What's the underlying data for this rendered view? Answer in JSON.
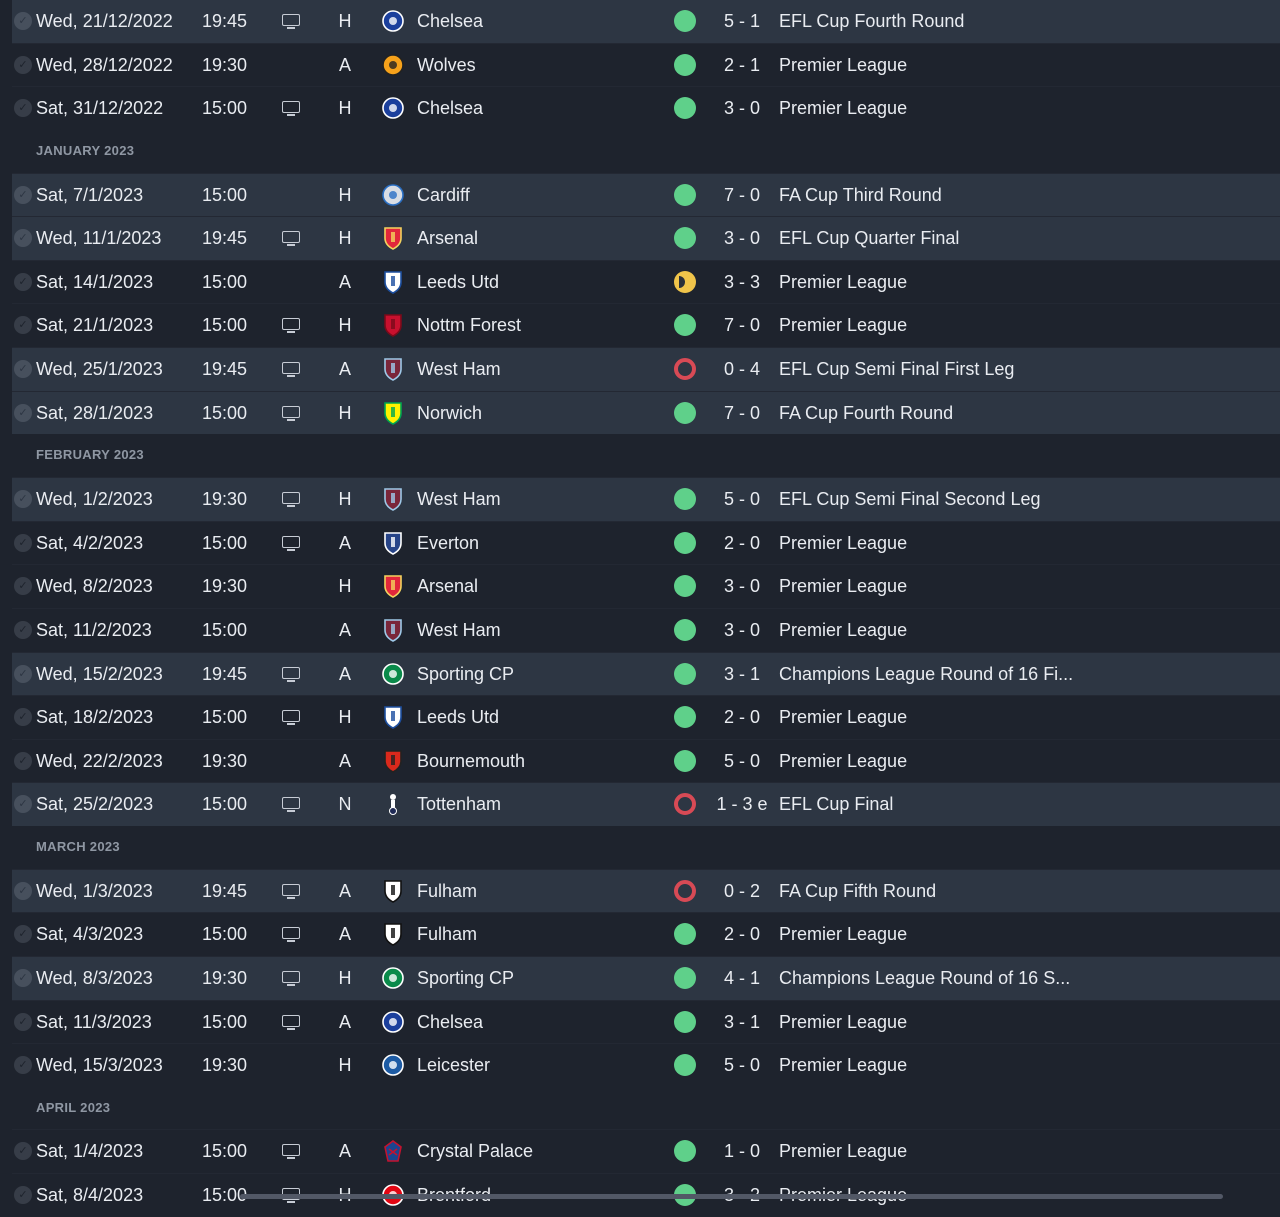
{
  "colors": {
    "win": "#5fd08a",
    "loss": "#d84a55",
    "draw": "#f0c44a",
    "row_highlight": "#2d3643",
    "background": "#1e232d"
  },
  "fixtures": [
    {
      "type": "match",
      "hl": true,
      "date": "Wed, 21/12/2022",
      "time": "19:45",
      "tv": true,
      "venue": "H",
      "team": "Chelsea",
      "crest": "chelsea-crest-icon",
      "result": "w",
      "score": "5 - 1",
      "comp": "EFL Cup Fourth Round"
    },
    {
      "type": "match",
      "hl": false,
      "date": "Wed, 28/12/2022",
      "time": "19:30",
      "tv": false,
      "venue": "A",
      "team": "Wolves",
      "crest": "wolves-crest-icon",
      "result": "w",
      "score": "2 - 1",
      "comp": "Premier League"
    },
    {
      "type": "match",
      "hl": false,
      "date": "Sat, 31/12/2022",
      "time": "15:00",
      "tv": true,
      "venue": "H",
      "team": "Chelsea",
      "crest": "chelsea-crest-icon",
      "result": "w",
      "score": "3 - 0",
      "comp": "Premier League"
    },
    {
      "type": "month",
      "label": "JANUARY 2023"
    },
    {
      "type": "match",
      "hl": true,
      "date": "Sat, 7/1/2023",
      "time": "15:00",
      "tv": false,
      "venue": "H",
      "team": "Cardiff",
      "crest": "cardiff-crest-icon",
      "result": "w",
      "score": "7 - 0",
      "comp": "FA Cup Third Round"
    },
    {
      "type": "match",
      "hl": true,
      "date": "Wed, 11/1/2023",
      "time": "19:45",
      "tv": true,
      "venue": "H",
      "team": "Arsenal",
      "crest": "arsenal-crest-icon",
      "result": "w",
      "score": "3 - 0",
      "comp": "EFL Cup Quarter Final"
    },
    {
      "type": "match",
      "hl": false,
      "date": "Sat, 14/1/2023",
      "time": "15:00",
      "tv": false,
      "venue": "A",
      "team": "Leeds Utd",
      "crest": "leeds-crest-icon",
      "result": "d",
      "score": "3 - 3",
      "comp": "Premier League"
    },
    {
      "type": "match",
      "hl": false,
      "date": "Sat, 21/1/2023",
      "time": "15:00",
      "tv": true,
      "venue": "H",
      "team": "Nottm Forest",
      "crest": "forest-crest-icon",
      "result": "w",
      "score": "7 - 0",
      "comp": "Premier League"
    },
    {
      "type": "match",
      "hl": true,
      "date": "Wed, 25/1/2023",
      "time": "19:45",
      "tv": true,
      "venue": "A",
      "team": "West Ham",
      "crest": "westham-crest-icon",
      "result": "l",
      "score": "0 - 4",
      "comp": "EFL Cup Semi Final First Leg"
    },
    {
      "type": "match",
      "hl": true,
      "date": "Sat, 28/1/2023",
      "time": "15:00",
      "tv": true,
      "venue": "H",
      "team": "Norwich",
      "crest": "norwich-crest-icon",
      "result": "w",
      "score": "7 - 0",
      "comp": "FA Cup Fourth Round"
    },
    {
      "type": "month",
      "label": "FEBRUARY 2023"
    },
    {
      "type": "match",
      "hl": true,
      "date": "Wed, 1/2/2023",
      "time": "19:30",
      "tv": true,
      "venue": "H",
      "team": "West Ham",
      "crest": "westham-crest-icon",
      "result": "w",
      "score": "5 - 0",
      "comp": "EFL Cup Semi Final Second Leg"
    },
    {
      "type": "match",
      "hl": false,
      "date": "Sat, 4/2/2023",
      "time": "15:00",
      "tv": true,
      "venue": "A",
      "team": "Everton",
      "crest": "everton-crest-icon",
      "result": "w",
      "score": "2 - 0",
      "comp": "Premier League"
    },
    {
      "type": "match",
      "hl": false,
      "date": "Wed, 8/2/2023",
      "time": "19:30",
      "tv": false,
      "venue": "H",
      "team": "Arsenal",
      "crest": "arsenal-crest-icon",
      "result": "w",
      "score": "3 - 0",
      "comp": "Premier League"
    },
    {
      "type": "match",
      "hl": false,
      "date": "Sat, 11/2/2023",
      "time": "15:00",
      "tv": false,
      "venue": "A",
      "team": "West Ham",
      "crest": "westham-crest-icon",
      "result": "w",
      "score": "3 - 0",
      "comp": "Premier League"
    },
    {
      "type": "match",
      "hl": true,
      "date": "Wed, 15/2/2023",
      "time": "19:45",
      "tv": true,
      "venue": "A",
      "team": "Sporting CP",
      "crest": "sporting-crest-icon",
      "result": "w",
      "score": "3 - 1",
      "comp": "Champions League Round of 16  Fi..."
    },
    {
      "type": "match",
      "hl": false,
      "date": "Sat, 18/2/2023",
      "time": "15:00",
      "tv": true,
      "venue": "H",
      "team": "Leeds Utd",
      "crest": "leeds-crest-icon",
      "result": "w",
      "score": "2 - 0",
      "comp": "Premier League"
    },
    {
      "type": "match",
      "hl": false,
      "date": "Wed, 22/2/2023",
      "time": "19:30",
      "tv": false,
      "venue": "A",
      "team": "Bournemouth",
      "crest": "bournemouth-crest-icon",
      "result": "w",
      "score": "5 - 0",
      "comp": "Premier League"
    },
    {
      "type": "match",
      "hl": true,
      "date": "Sat, 25/2/2023",
      "time": "15:00",
      "tv": true,
      "venue": "N",
      "team": "Tottenham",
      "crest": "tottenham-crest-icon",
      "result": "l",
      "score": "1 - 3 e",
      "comp": "EFL Cup Final"
    },
    {
      "type": "month",
      "label": "MARCH 2023"
    },
    {
      "type": "match",
      "hl": true,
      "date": "Wed, 1/3/2023",
      "time": "19:45",
      "tv": true,
      "venue": "A",
      "team": "Fulham",
      "crest": "fulham-crest-icon",
      "result": "l",
      "score": "0 - 2",
      "comp": "FA Cup Fifth Round"
    },
    {
      "type": "match",
      "hl": false,
      "date": "Sat, 4/3/2023",
      "time": "15:00",
      "tv": true,
      "venue": "A",
      "team": "Fulham",
      "crest": "fulham-crest-icon",
      "result": "w",
      "score": "2 - 0",
      "comp": "Premier League"
    },
    {
      "type": "match",
      "hl": true,
      "date": "Wed, 8/3/2023",
      "time": "19:30",
      "tv": true,
      "venue": "H",
      "team": "Sporting CP",
      "crest": "sporting-crest-icon",
      "result": "w",
      "score": "4 - 1",
      "comp": "Champions League Round of 16  S..."
    },
    {
      "type": "match",
      "hl": false,
      "date": "Sat, 11/3/2023",
      "time": "15:00",
      "tv": true,
      "venue": "A",
      "team": "Chelsea",
      "crest": "chelsea-crest-icon",
      "result": "w",
      "score": "3 - 1",
      "comp": "Premier League"
    },
    {
      "type": "match",
      "hl": false,
      "date": "Wed, 15/3/2023",
      "time": "19:30",
      "tv": false,
      "venue": "H",
      "team": "Leicester",
      "crest": "leicester-crest-icon",
      "result": "w",
      "score": "5 - 0",
      "comp": "Premier League"
    },
    {
      "type": "month",
      "label": "APRIL 2023"
    },
    {
      "type": "match",
      "hl": false,
      "date": "Sat, 1/4/2023",
      "time": "15:00",
      "tv": true,
      "venue": "A",
      "team": "Crystal Palace",
      "crest": "palace-crest-icon",
      "result": "w",
      "score": "1 - 0",
      "comp": "Premier League"
    },
    {
      "type": "match",
      "hl": false,
      "date": "Sat, 8/4/2023",
      "time": "15:00",
      "tv": true,
      "venue": "H",
      "team": "Brentford",
      "crest": "brentford-crest-icon",
      "result": "w",
      "score": "3 - 2",
      "comp": "Premier League"
    }
  ]
}
